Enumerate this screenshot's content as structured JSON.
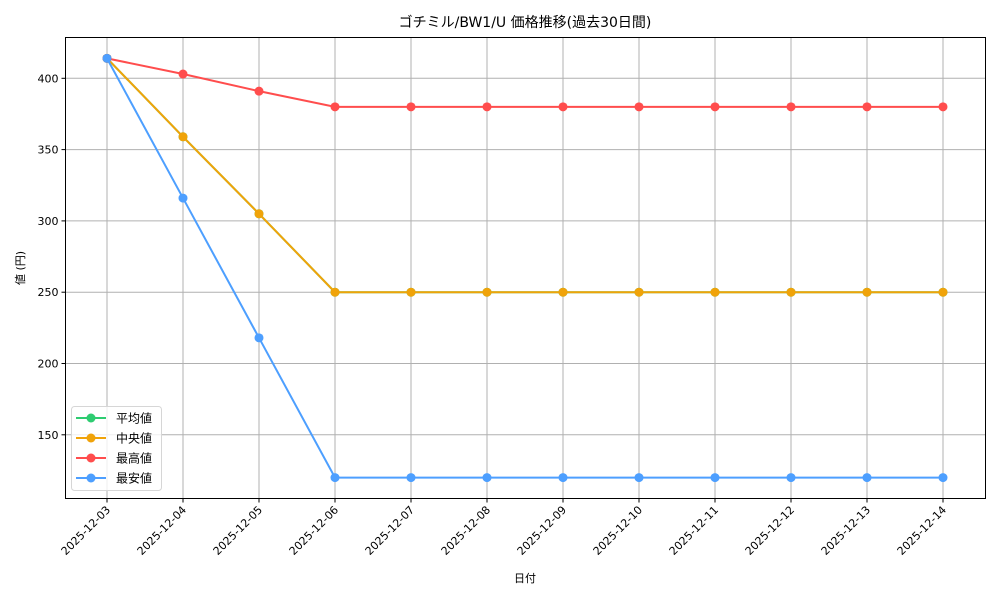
{
  "chart_data": {
    "type": "line",
    "title": "ゴチミル/BW1/U 価格推移(過去30日間)",
    "xlabel": "日付",
    "ylabel": "値 (円)",
    "x": [
      "2025-12-03",
      "2025-12-04",
      "2025-12-05",
      "2025-12-06",
      "2025-12-07",
      "2025-12-08",
      "2025-12-09",
      "2025-12-10",
      "2025-12-11",
      "2025-12-12",
      "2025-12-13",
      "2025-12-14"
    ],
    "yticks": [
      150,
      200,
      250,
      300,
      350,
      400
    ],
    "ylim": [
      105,
      428
    ],
    "grid": true,
    "legend_position": "lower left",
    "series": [
      {
        "name": "平均値",
        "color": "#2ecc71",
        "values": [
          414,
          359,
          305,
          250,
          250,
          250,
          250,
          250,
          250,
          250,
          250,
          250
        ]
      },
      {
        "name": "中央値",
        "color": "#f0a30a",
        "values": [
          414,
          359,
          305,
          250,
          250,
          250,
          250,
          250,
          250,
          250,
          250,
          250
        ]
      },
      {
        "name": "最高値",
        "color": "#ff4d4d",
        "values": [
          414,
          403,
          391,
          380,
          380,
          380,
          380,
          380,
          380,
          380,
          380,
          380
        ]
      },
      {
        "name": "最安値",
        "color": "#4d9fff",
        "values": [
          414,
          316,
          218,
          120,
          120,
          120,
          120,
          120,
          120,
          120,
          120,
          120
        ]
      }
    ]
  }
}
